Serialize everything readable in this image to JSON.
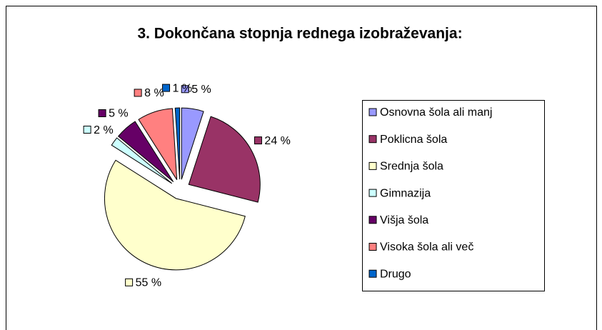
{
  "chart_data": {
    "type": "pie",
    "title": "3. Dokončana stopnja rednega izobraževanja:",
    "categories": [
      "Osnovna šola ali manj",
      "Poklicna šola",
      "Srednja šola",
      "Gimnazija",
      "Višja šola",
      "Visoka šola ali več",
      "Drugo"
    ],
    "values": [
      5,
      24,
      55,
      2,
      5,
      8,
      1
    ],
    "value_labels": [
      "5 %",
      "24 %",
      "55 %",
      "2 %",
      "5 %",
      "8 %",
      "1 %"
    ],
    "colors": [
      "#9999ff",
      "#993366",
      "#ffffcc",
      "#ccffff",
      "#660066",
      "#ff8080",
      "#0066cc"
    ],
    "legend": "right"
  }
}
